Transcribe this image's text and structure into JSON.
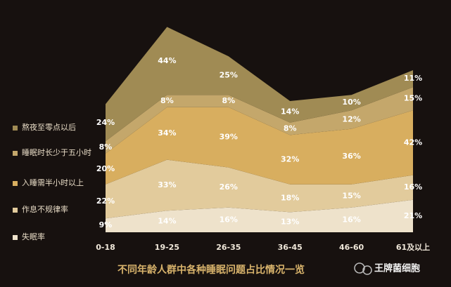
{
  "chart_data": {
    "type": "stacked-area",
    "title": "不同年龄人群中各种睡眠问题占比情况一览",
    "watermark": "王牌菌细胞",
    "categories": [
      "0-18",
      "19-25",
      "26-35",
      "36-45",
      "46-60",
      "61及以上"
    ],
    "series": [
      {
        "name": "失眠率",
        "color": "#eee2cb",
        "values": [
          9,
          14,
          16,
          13,
          16,
          21
        ],
        "value_labels": [
          "9%",
          "14%",
          "16%",
          "13%",
          "16%",
          "21%"
        ]
      },
      {
        "name": "作息不规律率",
        "color": "#e2cb9c",
        "values": [
          22,
          33,
          26,
          18,
          15,
          16
        ],
        "value_labels": [
          "22%",
          "33%",
          "26%",
          "18%",
          "15%",
          "16%"
        ]
      },
      {
        "name": "入睡需半小时以上",
        "color": "#d8ae5f",
        "values": [
          20,
          34,
          39,
          32,
          36,
          42
        ],
        "value_labels": [
          "20%",
          "34%",
          "39%",
          "32%",
          "36%",
          "42%"
        ]
      },
      {
        "name": "睡眠时长少于五小时",
        "color": "#c4a76b",
        "values": [
          8,
          8,
          8,
          8,
          12,
          15
        ],
        "value_labels": [
          "8%",
          "8%",
          "8%",
          "8%",
          "12%",
          "15%"
        ]
      },
      {
        "name": "熬夜至零点以后",
        "color": "#a08b54",
        "values": [
          24,
          44,
          25,
          14,
          10,
          11
        ],
        "value_labels": [
          "24%",
          "44%",
          "25%",
          "14%",
          "10%",
          "11%"
        ]
      }
    ],
    "legend": "left"
  }
}
